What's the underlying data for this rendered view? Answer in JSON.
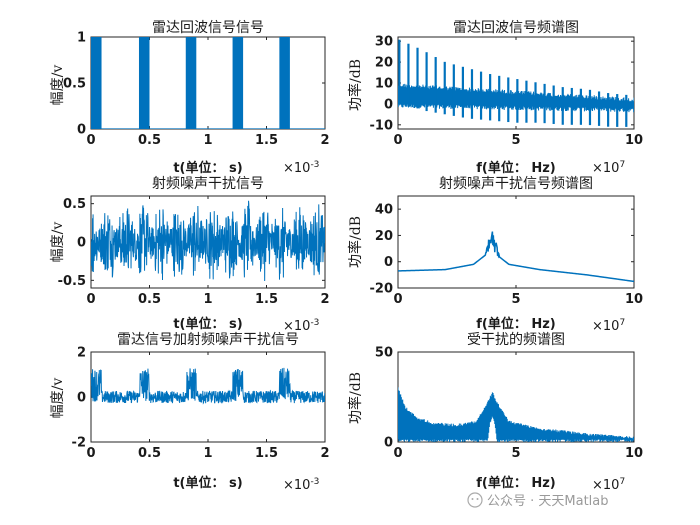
{
  "figure": {
    "background": "#ffffff",
    "line_color": "#0072bd",
    "axis_color": "#262626"
  },
  "watermark": {
    "text": "公众号 · 天天Matlab"
  },
  "chart_data": [
    {
      "id": "p1",
      "type": "line",
      "style": "pulse",
      "title": "雷达回波信号信号",
      "xlabel": "t(单位： s)",
      "ylabel": "幅度/v",
      "xlim": [
        0,
        0.002
      ],
      "ylim": [
        0,
        1
      ],
      "xticks": [
        0,
        0.5,
        1,
        1.5,
        2
      ],
      "yticks": [
        0,
        0.5,
        1
      ],
      "x_exponent": "×10",
      "x_exponent_sup": "-3",
      "pulses": [
        {
          "start": 0.0,
          "end": 0.09
        },
        {
          "start": 0.41,
          "end": 0.5
        },
        {
          "start": 0.81,
          "end": 0.9
        },
        {
          "start": 1.21,
          "end": 1.3
        },
        {
          "start": 1.61,
          "end": 1.7
        }
      ],
      "pulse_unit": "x1e-3 s",
      "pulse_amplitude": [
        0,
        1
      ]
    },
    {
      "id": "p2",
      "type": "line",
      "style": "comb",
      "title": "雷达回波信号频谱图",
      "xlabel": "f(单位： Hz)",
      "ylabel": "功率/dB",
      "xlim": [
        0,
        10
      ],
      "ylim": [
        -12,
        32
      ],
      "xticks": [
        0,
        5,
        10
      ],
      "yticks": [
        -10,
        0,
        10,
        20,
        30
      ],
      "x_exponent": "×10",
      "x_exponent_sup": "7",
      "envelope_top": [
        [
          0,
          31
        ],
        [
          1,
          26
        ],
        [
          2,
          20
        ],
        [
          3,
          17
        ],
        [
          4,
          14
        ],
        [
          5,
          12
        ],
        [
          6,
          10
        ],
        [
          7,
          8
        ],
        [
          8,
          7
        ],
        [
          9,
          5
        ],
        [
          10,
          4
        ]
      ],
      "envelope_bottom": [
        [
          0,
          2
        ],
        [
          1,
          -3
        ],
        [
          2,
          -5
        ],
        [
          3,
          -7
        ],
        [
          4,
          -8
        ],
        [
          5,
          -9
        ],
        [
          6,
          -9
        ],
        [
          7,
          -10
        ],
        [
          8,
          -10
        ],
        [
          9,
          -11
        ],
        [
          10,
          -11
        ]
      ],
      "band_top": [
        [
          0,
          10
        ],
        [
          10,
          3
        ]
      ],
      "band_bottom": [
        [
          0,
          -2
        ],
        [
          10,
          -4
        ]
      ],
      "peak_count": 26
    },
    {
      "id": "p3",
      "type": "line",
      "style": "noise",
      "title": "射频噪声干扰信号",
      "xlabel": "t(单位： s)",
      "ylabel": "幅度/v",
      "xlim": [
        0,
        0.002
      ],
      "ylim": [
        -0.6,
        0.6
      ],
      "xticks": [
        0,
        0.5,
        1,
        1.5,
        2
      ],
      "yticks": [
        -0.5,
        0,
        0.5
      ],
      "x_exponent": "×10",
      "x_exponent_sup": "-3",
      "amplitude": 0.55
    },
    {
      "id": "p4",
      "type": "line",
      "style": "resonance",
      "title": "射频噪声干扰信号频谱图",
      "xlabel": "f(单位： Hz)",
      "ylabel": "功率/dB",
      "xlim": [
        0,
        10
      ],
      "ylim": [
        -20,
        50
      ],
      "xticks": [
        0,
        5,
        10
      ],
      "yticks": [
        -20,
        0,
        20,
        40
      ],
      "x_exponent": "×10",
      "x_exponent_sup": "7",
      "baseline": [
        [
          0,
          -7
        ],
        [
          2,
          -6
        ],
        [
          3.2,
          -2
        ],
        [
          3.7,
          5
        ],
        [
          3.95,
          12
        ],
        [
          4.2,
          5
        ],
        [
          4.7,
          -2
        ],
        [
          6,
          -6
        ],
        [
          8,
          -10
        ],
        [
          10,
          -15
        ]
      ],
      "peak_center": 4.0,
      "peak_value": 26,
      "peak_width": 0.3
    },
    {
      "id": "p5",
      "type": "line",
      "style": "pulse_noise",
      "title": "雷达信号加射频噪声干扰信号",
      "xlabel": "t(单位： s)",
      "ylabel": "幅度/v",
      "xlim": [
        0,
        0.002
      ],
      "ylim": [
        -2,
        2
      ],
      "xticks": [
        0,
        0.5,
        1,
        1.5,
        2
      ],
      "yticks": [
        -2,
        0,
        2
      ],
      "x_exponent": "×10",
      "x_exponent_sup": "-3",
      "pulses": [
        {
          "start": 0.0,
          "end": 0.09
        },
        {
          "start": 0.41,
          "end": 0.5
        },
        {
          "start": 0.81,
          "end": 0.9
        },
        {
          "start": 1.21,
          "end": 1.3
        },
        {
          "start": 1.61,
          "end": 1.7
        }
      ],
      "pulse_amplitude": [
        -0.2,
        1.3
      ],
      "noise_amplitude": 0.5
    },
    {
      "id": "p6",
      "type": "line",
      "style": "mixed_spectrum",
      "title": "受干扰的频谱图",
      "xlabel": "f(单位： Hz)",
      "ylabel": "功率/dB",
      "xlim": [
        0,
        10
      ],
      "ylim": [
        0,
        50
      ],
      "xticks": [
        0,
        5,
        10
      ],
      "yticks": [
        0,
        50
      ],
      "x_exponent": "×10",
      "x_exponent_sup": "7",
      "top_envelope": [
        [
          0,
          31
        ],
        [
          0.3,
          20
        ],
        [
          0.8,
          14
        ],
        [
          1.5,
          11
        ],
        [
          2.5,
          10
        ],
        [
          3.3,
          12
        ],
        [
          3.7,
          20
        ],
        [
          4.0,
          28
        ],
        [
          4.3,
          20
        ],
        [
          4.7,
          12
        ],
        [
          6,
          8
        ],
        [
          8,
          5
        ],
        [
          10,
          3
        ]
      ],
      "bottom_envelope": [
        [
          0,
          0
        ],
        [
          3.8,
          0
        ],
        [
          3.9,
          10
        ],
        [
          4.0,
          14
        ],
        [
          4.1,
          10
        ],
        [
          4.2,
          0
        ],
        [
          10,
          0
        ]
      ]
    }
  ]
}
